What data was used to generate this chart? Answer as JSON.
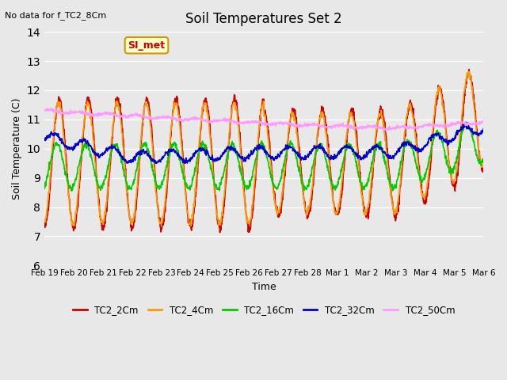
{
  "title": "Soil Temperatures Set 2",
  "subtitle": "No data for f_TC2_8Cm",
  "xlabel": "Time",
  "ylabel": "Soil Temperature (C)",
  "ylim": [
    6.0,
    14.0
  ],
  "yticks": [
    6.0,
    7.0,
    8.0,
    9.0,
    10.0,
    11.0,
    12.0,
    13.0,
    14.0
  ],
  "xtick_labels": [
    "Feb 19",
    "Feb 20",
    "Feb 21",
    "Feb 22",
    "Feb 23",
    "Feb 24",
    "Feb 25",
    "Feb 26",
    "Feb 27",
    "Feb 28",
    "Mar 1",
    "Mar 2",
    "Mar 3",
    "Mar 4",
    "Mar 5",
    "Mar 6"
  ],
  "series": {
    "TC2_2Cm": {
      "color": "#cc0000",
      "lw": 1.2
    },
    "TC2_4Cm": {
      "color": "#ff9900",
      "lw": 1.2
    },
    "TC2_16Cm": {
      "color": "#00cc00",
      "lw": 1.2
    },
    "TC2_32Cm": {
      "color": "#0000cc",
      "lw": 1.2
    },
    "TC2_50Cm": {
      "color": "#ff99ff",
      "lw": 1.2
    }
  },
  "annotation_text": "SI_met",
  "annotation_color": "#cc0000",
  "annotation_bg": "#ffffcc",
  "bg_color": "#e8e8e8"
}
